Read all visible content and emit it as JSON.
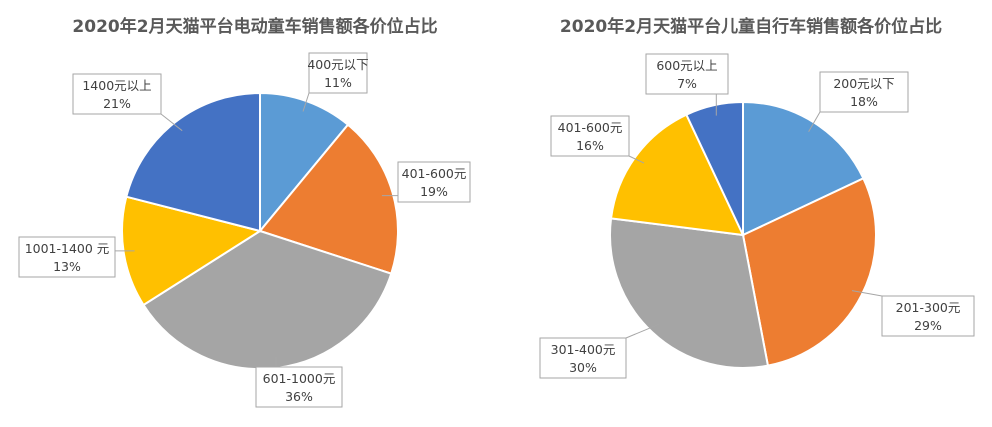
{
  "chart_data": [
    {
      "type": "pie",
      "title": "2020年2月天猫平台电动童车销售额各价位占比",
      "slices": [
        {
          "label": "400元以下",
          "value": 11,
          "value_label": "11%",
          "color": "#5b9bd5"
        },
        {
          "label": "401-600元",
          "value": 19,
          "value_label": "19%",
          "color": "#ed7d31"
        },
        {
          "label": "601-1000元",
          "value": 36,
          "value_label": "36%",
          "color": "#a5a5a5"
        },
        {
          "label": "1001-1400 元",
          "value": 13,
          "value_label": "13%",
          "color": "#ffc000"
        },
        {
          "label": "1400元以上",
          "value": 21,
          "value_label": "21%",
          "color": "#4472c4"
        }
      ],
      "start_angle_deg": 0,
      "direction": "clockwise",
      "legend": "none"
    },
    {
      "type": "pie",
      "title": "2020年2月天猫平台儿童自行车销售额各价位占比",
      "slices": [
        {
          "label": "200元以下",
          "value": 18,
          "value_label": "18%",
          "color": "#5b9bd5"
        },
        {
          "label": "201-300元",
          "value": 29,
          "value_label": "29%",
          "color": "#ed7d31"
        },
        {
          "label": "301-400元",
          "value": 30,
          "value_label": "30%",
          "color": "#a5a5a5"
        },
        {
          "label": "401-600元",
          "value": 16,
          "value_label": "16%",
          "color": "#ffc000"
        },
        {
          "label": "600元以上",
          "value": 7,
          "value_label": "7%",
          "color": "#4472c4"
        }
      ],
      "start_angle_deg": 0,
      "direction": "clockwise",
      "legend": "none"
    }
  ]
}
